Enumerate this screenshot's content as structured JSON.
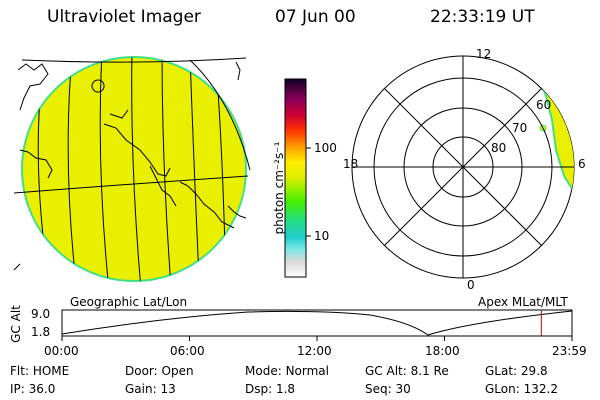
{
  "header": {
    "title": "Ultraviolet Imager",
    "date": "07 Jun 00",
    "time": "22:33:19 UT"
  },
  "colorbar": {
    "unit_label": "photon cm⁻²s⁻¹",
    "ticks": [
      "100",
      "10"
    ]
  },
  "geo_panel": {
    "label": "Geographic Lat/Lon",
    "fill_color": "#e8f000"
  },
  "polar_panel": {
    "label": "Apex MLat/MLT",
    "mlt_labels": [
      "12",
      "18",
      "6",
      "0"
    ],
    "lat_labels": [
      "60",
      "70",
      "80"
    ]
  },
  "alt_plot": {
    "ylabel": "GC Alt",
    "y_ticks": [
      "9.0",
      "1.8"
    ],
    "x_ticks": [
      "00:00",
      "06:00",
      "12:00",
      "18:00",
      "23:59"
    ],
    "current_time_fraction": 0.9398,
    "marker_color": "#c00000"
  },
  "status": {
    "row1": [
      {
        "key": "Flt:",
        "value": "HOME"
      },
      {
        "key": "Door:",
        "value": "Open"
      },
      {
        "key": "Mode:",
        "value": "Normal"
      },
      {
        "key": "GC Alt:",
        "value": "8.1 Re"
      },
      {
        "key": "GLat:",
        "value": "29.8"
      }
    ],
    "row2": [
      {
        "key": "IP:",
        "value": "36.0"
      },
      {
        "key": "Gain:",
        "value": "13"
      },
      {
        "key": "Dsp:",
        "value": "1.8"
      },
      {
        "key": "Seq:",
        "value": "30"
      },
      {
        "key": "GLon:",
        "value": "132.2"
      }
    ]
  }
}
